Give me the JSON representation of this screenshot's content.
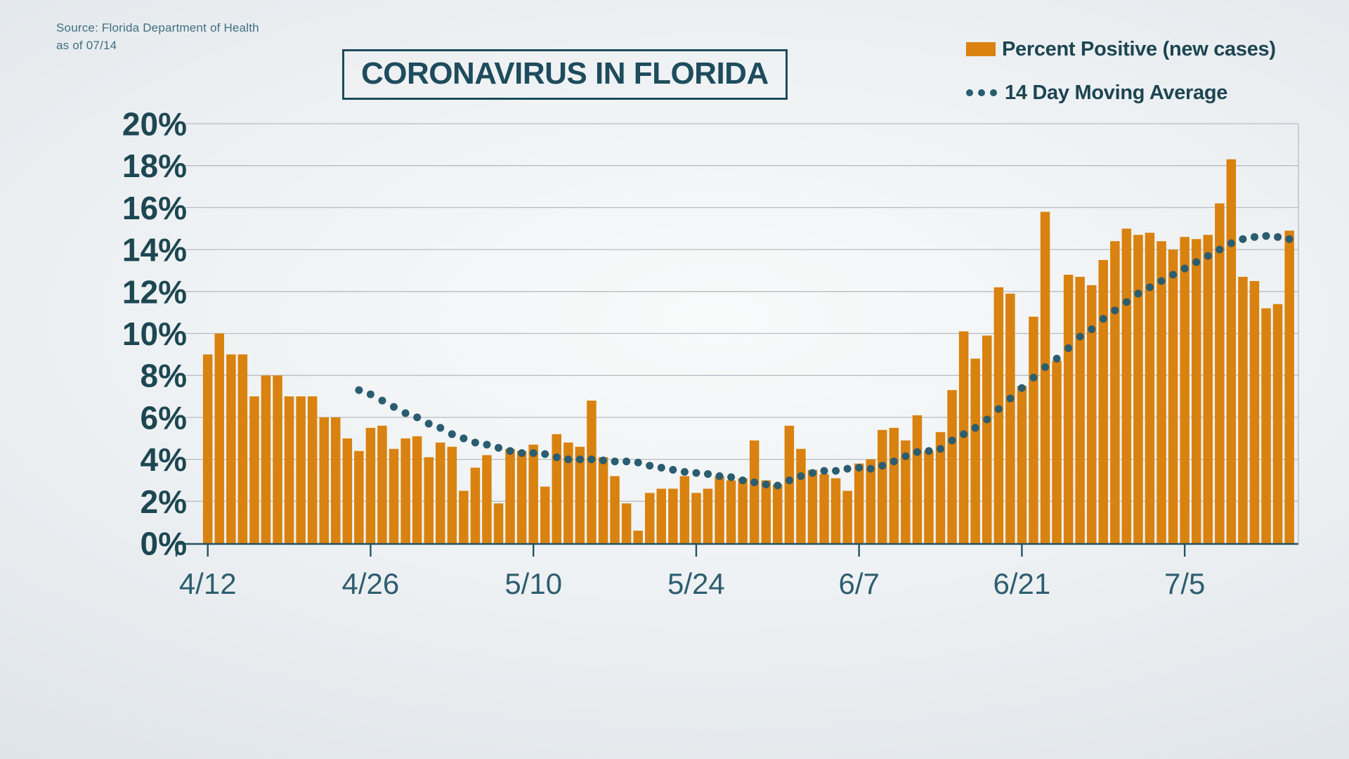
{
  "source": {
    "line1": "Source: Florida Department of Health",
    "line2": "as of 07/14"
  },
  "title": "CORONAVIRUS IN FLORIDA",
  "legend": {
    "bars_label": "Percent Positive (new cases)",
    "ma_label": "14 Day Moving Average"
  },
  "colors": {
    "bar": "#d9820f",
    "ma_dot": "#2a5d70",
    "teal_text": "#1d4c5d",
    "grid": "#b7bdc1",
    "axis": "#235364"
  },
  "chart_data": {
    "type": "bar",
    "title": "CORONAVIRUS IN FLORIDA",
    "ylabel": "Percent positive",
    "ylim": [
      0,
      20
    ],
    "ytick_step": 2,
    "ytick_suffix": "%",
    "grid": true,
    "legend_position": "top-right",
    "xtick_labels": [
      "4/12",
      "4/26",
      "5/10",
      "5/24",
      "6/7",
      "6/21",
      "7/5"
    ],
    "xtick_indices": [
      0,
      14,
      28,
      42,
      56,
      70,
      84
    ],
    "x": [
      "4/12",
      "4/13",
      "4/14",
      "4/15",
      "4/16",
      "4/17",
      "4/18",
      "4/19",
      "4/20",
      "4/21",
      "4/22",
      "4/23",
      "4/24",
      "4/25",
      "4/26",
      "4/27",
      "4/28",
      "4/29",
      "4/30",
      "5/1",
      "5/2",
      "5/3",
      "5/4",
      "5/5",
      "5/6",
      "5/7",
      "5/8",
      "5/9",
      "5/10",
      "5/11",
      "5/12",
      "5/13",
      "5/14",
      "5/15",
      "5/16",
      "5/17",
      "5/18",
      "5/19",
      "5/20",
      "5/21",
      "5/22",
      "5/23",
      "5/24",
      "5/25",
      "5/26",
      "5/27",
      "5/28",
      "5/29",
      "5/30",
      "5/31",
      "6/1",
      "6/2",
      "6/3",
      "6/4",
      "6/5",
      "6/6",
      "6/7",
      "6/8",
      "6/9",
      "6/10",
      "6/11",
      "6/12",
      "6/13",
      "6/14",
      "6/15",
      "6/16",
      "6/17",
      "6/18",
      "6/19",
      "6/20",
      "6/21",
      "6/22",
      "6/23",
      "6/24",
      "6/25",
      "6/26",
      "6/27",
      "6/28",
      "6/29",
      "6/30",
      "7/1",
      "7/2",
      "7/3",
      "7/4",
      "7/5",
      "7/6",
      "7/7",
      "7/8",
      "7/9",
      "7/10",
      "7/11",
      "7/12",
      "7/13",
      "7/14"
    ],
    "series": [
      {
        "name": "Percent Positive (new cases)",
        "type": "bar",
        "values": [
          9.0,
          10.0,
          9.0,
          9.0,
          7.0,
          8.0,
          8.0,
          7.0,
          7.0,
          7.0,
          6.0,
          6.0,
          5.0,
          4.4,
          5.5,
          5.6,
          4.5,
          5.0,
          5.1,
          4.1,
          4.8,
          4.6,
          2.5,
          3.6,
          4.2,
          1.9,
          4.5,
          4.4,
          4.7,
          2.7,
          5.2,
          4.8,
          4.6,
          6.8,
          4.1,
          3.2,
          1.9,
          0.6,
          2.4,
          2.6,
          2.6,
          3.2,
          2.4,
          2.6,
          3.2,
          3.0,
          3.1,
          4.9,
          3.0,
          2.8,
          5.6,
          4.5,
          3.5,
          3.3,
          3.1,
          2.5,
          3.8,
          4.0,
          5.4,
          5.5,
          4.9,
          6.1,
          4.4,
          5.3,
          7.3,
          10.1,
          8.8,
          9.9,
          12.2,
          11.9,
          7.5,
          10.8,
          15.8,
          8.7,
          12.8,
          12.7,
          12.3,
          13.5,
          14.4,
          15.0,
          14.7,
          14.8,
          14.4,
          14.0,
          14.6,
          14.5,
          14.7,
          16.2,
          18.3,
          12.7,
          12.5,
          11.2,
          11.4,
          14.9
        ]
      },
      {
        "name": "14 Day Moving Average",
        "type": "dotted-line",
        "values": [
          null,
          null,
          null,
          null,
          null,
          null,
          null,
          null,
          null,
          null,
          null,
          null,
          null,
          7.3,
          7.1,
          6.8,
          6.5,
          6.2,
          6.0,
          5.7,
          5.5,
          5.2,
          5.0,
          4.8,
          4.7,
          4.55,
          4.4,
          4.3,
          4.3,
          4.25,
          4.1,
          4.0,
          4.0,
          4.0,
          3.95,
          3.9,
          3.9,
          3.85,
          3.7,
          3.6,
          3.5,
          3.4,
          3.35,
          3.3,
          3.2,
          3.15,
          3.0,
          2.9,
          2.8,
          2.75,
          3.0,
          3.2,
          3.35,
          3.45,
          3.45,
          3.55,
          3.6,
          3.55,
          3.7,
          3.9,
          4.15,
          4.35,
          4.4,
          4.5,
          4.9,
          5.2,
          5.5,
          5.9,
          6.4,
          6.9,
          7.4,
          7.9,
          8.4,
          8.8,
          9.3,
          9.85,
          10.2,
          10.7,
          11.1,
          11.5,
          11.9,
          12.2,
          12.5,
          12.8,
          13.1,
          13.4,
          13.7,
          14.0,
          14.3,
          14.5,
          14.6,
          14.65,
          14.6,
          14.5
        ]
      }
    ]
  }
}
